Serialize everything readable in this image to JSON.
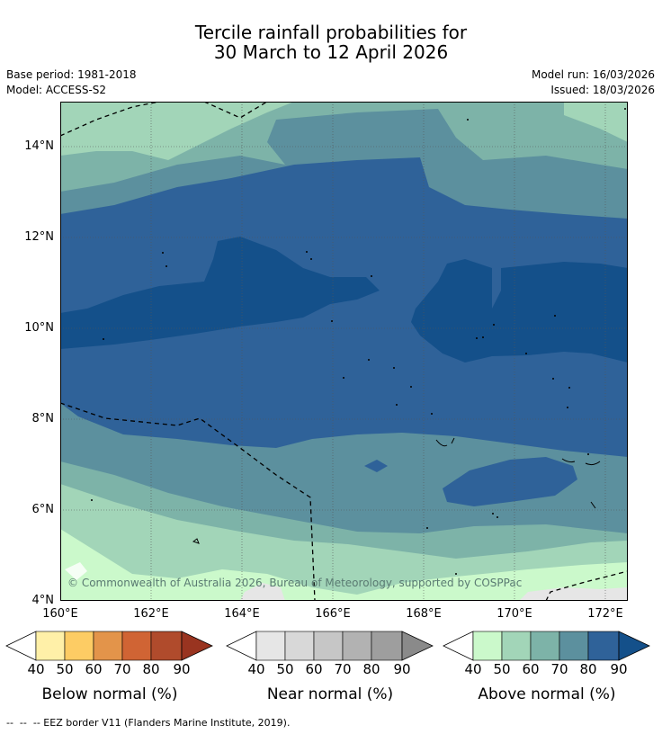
{
  "title": {
    "line1": "Tercile rainfall probabilities for",
    "line2": "30 March to 12 April 2026"
  },
  "meta": {
    "base_period": "Base period: 1981-2018",
    "model": "Model: ACCESS-S2",
    "model_run": "Model run: 16/03/2026",
    "issued": "Issued: 18/03/2026"
  },
  "map": {
    "lon_ticks": [
      "160°E",
      "162°E",
      "164°E",
      "166°E",
      "168°E",
      "170°E",
      "172°E"
    ],
    "lat_ticks": [
      "14°N",
      "12°N",
      "10°N",
      "8°N",
      "6°N",
      "4°N"
    ],
    "attribution": "© Commonwealth of Australia 2026, Bureau of Meteorology, supported by COSPPac"
  },
  "colorbars": [
    {
      "title": "Below normal (%)",
      "ticks": [
        "40",
        "50",
        "60",
        "70",
        "80",
        "90"
      ],
      "colors": [
        "#fff0a8",
        "#fdcc64",
        "#e3944a",
        "#d06434",
        "#b04b2c",
        "#993420"
      ]
    },
    {
      "title": "Near normal (%)",
      "ticks": [
        "40",
        "50",
        "60",
        "70",
        "80",
        "90"
      ],
      "colors": [
        "#e6e6e6",
        "#d8d8d8",
        "#c6c6c6",
        "#b2b2b2",
        "#9e9e9e",
        "#8a8a8a"
      ]
    },
    {
      "title": "Above normal (%)",
      "ticks": [
        "40",
        "50",
        "60",
        "70",
        "80",
        "90"
      ],
      "colors": [
        "#cbf9cb",
        "#a2d5b8",
        "#7db3a8",
        "#5c909e",
        "#2f6299",
        "#14508a"
      ]
    }
  ],
  "footnote": "--  --  -- EEZ border V11 (Flanders Marine Institute, 2019)."
}
